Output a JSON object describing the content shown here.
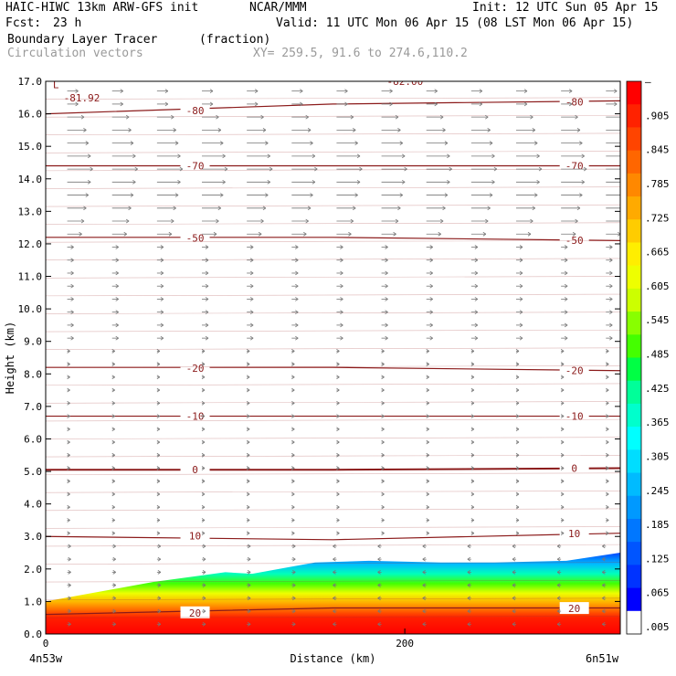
{
  "header": {
    "model_line": "HAIC-HIWC 13km ARW-GFS init",
    "org": "NCAR/MMM",
    "init": "Init: 12 UTC Sun 05 Apr 15",
    "fcst_label": "Fcst:",
    "fcst_value": "23 h",
    "valid": "Valid: 11 UTC Mon 06 Apr 15 (08 LST Mon 06 Apr 15)",
    "field_name": "Boundary Layer Tracer",
    "field_units": "(fraction)",
    "vector_name": "Circulation vectors",
    "xy": "XY= 259.5, 91.6 to 274.6,110.2"
  },
  "chart_data": {
    "type": "heatmap",
    "xlabel": "Distance (km)",
    "ylabel": "Height (km)",
    "xlim": [
      0,
      320
    ],
    "ylim": [
      0,
      17
    ],
    "x_ticks": [
      "0",
      "200"
    ],
    "y_ticks": [
      "0.0",
      "1.0",
      "2.0",
      "3.0",
      "4.0",
      "5.0",
      "6.0",
      "7.0",
      "8.0",
      "9.0",
      "10.0",
      "11.0",
      "12.0",
      "13.0",
      "14.0",
      "15.0",
      "16.0",
      "17.0"
    ],
    "left_endpoint": "4n53w",
    "right_endpoint": "6n51w",
    "colorbar": {
      "labels": [
        "–",
        ".905",
        ".845",
        ".785",
        ".725",
        ".665",
        ".605",
        ".545",
        ".485",
        ".425",
        ".365",
        ".305",
        ".245",
        ".185",
        ".125",
        ".065",
        ".005"
      ],
      "colors": [
        "#ff0000",
        "#ff2200",
        "#ff4400",
        "#ff6600",
        "#ff8800",
        "#ffaa00",
        "#ffcc00",
        "#ffee00",
        "#eeff00",
        "#ccff00",
        "#88ff00",
        "#44ff00",
        "#00ff44",
        "#00ff99",
        "#00ffcc",
        "#00ffff",
        "#00ddff",
        "#00bbff",
        "#0099ff",
        "#0077ff",
        "#0055ff",
        "#0033ff",
        "#0000ff",
        "#ffffff"
      ]
    },
    "tracer_top_km": [
      [
        0,
        1.0
      ],
      [
        20,
        1.2
      ],
      [
        60,
        1.6
      ],
      [
        100,
        1.9
      ],
      [
        115,
        1.85
      ],
      [
        135,
        2.05
      ],
      [
        150,
        2.2
      ],
      [
        180,
        2.25
      ],
      [
        220,
        2.2
      ],
      [
        250,
        2.2
      ],
      [
        290,
        2.25
      ],
      [
        320,
        2.5
      ]
    ],
    "temperature_contours": [
      {
        "label": "-80",
        "heights": [
          16.0,
          16.3,
          16.4
        ]
      },
      {
        "label": "-70",
        "heights": [
          14.4,
          14.4,
          14.4
        ]
      },
      {
        "label": "-50",
        "heights": [
          12.2,
          12.2,
          12.1
        ]
      },
      {
        "label": "-20",
        "heights": [
          8.2,
          8.2,
          8.1
        ]
      },
      {
        "label": "-10",
        "heights": [
          6.7,
          6.7,
          6.7
        ]
      },
      {
        "label": "0",
        "heights": [
          5.05,
          5.05,
          5.1
        ]
      },
      {
        "label": "10",
        "heights": [
          3.0,
          2.9,
          3.1
        ]
      },
      {
        "label": "20",
        "heights": [
          0.6,
          0.8,
          0.8
        ]
      }
    ],
    "annotations": [
      {
        "text": "L",
        "x": 4,
        "y": 16.9
      },
      {
        "text": "-81.92",
        "x": 10,
        "y": 16.5
      },
      {
        "text": "-82.00",
        "x": 190,
        "y": 17.0
      }
    ]
  }
}
